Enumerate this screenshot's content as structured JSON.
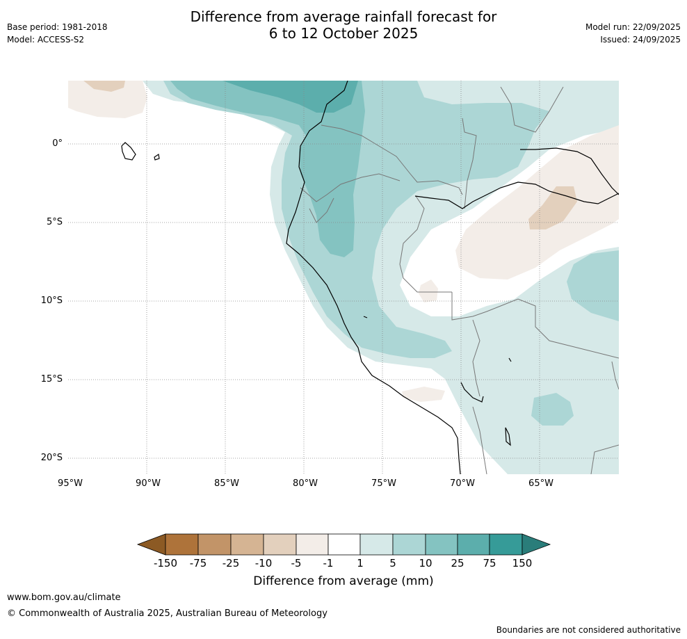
{
  "header": {
    "title_line1": "Difference from average rainfall forecast for",
    "title_line2": "6 to 12 October 2025",
    "base_period": "Base period: 1981-2018",
    "model": "Model: ACCESS-S2",
    "model_run": "Model run: 22/09/2025",
    "issued": "Issued: 24/09/2025"
  },
  "map": {
    "lat_labels": [
      "0°",
      "5°S",
      "10°S",
      "15°S",
      "20°S"
    ],
    "lon_labels": [
      "95°W",
      "90°W",
      "85°W",
      "80°W",
      "75°W",
      "70°W",
      "65°W"
    ]
  },
  "colorbar": {
    "label": "Difference from average (mm)",
    "ticks": [
      "-150",
      "-75",
      "-25",
      "-10",
      "-5",
      "-1",
      "1",
      "5",
      "10",
      "25",
      "75",
      "150"
    ],
    "colors": {
      "below_150": "#8c5a24",
      "n150_n75": "#ae733a",
      "n75_n25": "#c29468",
      "n25_n10": "#d5b493",
      "n10_n5": "#e3d0bd",
      "n5_n1": "#f3ede8",
      "n1_1": "#ffffff",
      "1_5": "#d6e9e8",
      "5_10": "#acd6d5",
      "10_25": "#84c3c1",
      "25_75": "#5caeac",
      "75_150": "#369b98",
      "above_150": "#2a7d7a"
    }
  },
  "footer": {
    "url": "www.bom.gov.au/climate",
    "copyright": "© Commonwealth of Australia 2025, Australian Bureau of Meteorology",
    "disclaimer": "Boundaries are not considered authoritative"
  }
}
